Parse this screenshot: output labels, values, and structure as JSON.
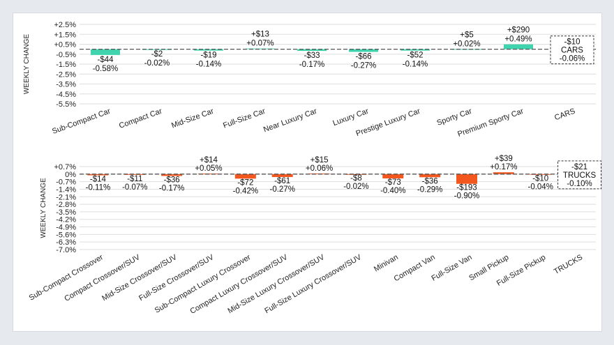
{
  "chart_data": [
    {
      "type": "bar",
      "title": "",
      "xlabel": "",
      "ylabel": "WEEKLY CHANGE",
      "ylim": [
        -5.5,
        2.5
      ],
      "yticks": [
        "+2.5%",
        "+1.5%",
        "+0.5%",
        "-0.5%",
        "-1.5%",
        "-2.5%",
        "-3.5%",
        "-4.5%",
        "-5.5%"
      ],
      "grid": true,
      "categories": [
        "Sub-Compact Car",
        "Compact Car",
        "Mid-Size Car",
        "Full-Size Car",
        "Near Luxury Car",
        "Luxury Car",
        "Prestige Luxury Car",
        "Sporty Car",
        "Premium Sporty Car",
        "CARS"
      ],
      "values": [
        -0.58,
        -0.02,
        -0.14,
        0.07,
        -0.17,
        -0.27,
        -0.14,
        0.02,
        0.49,
        -0.06
      ],
      "dollar_labels": [
        "-$44",
        "-$2",
        "-$19",
        "+$13",
        "-$33",
        "-$66",
        "-$52",
        "+$5",
        "+$290",
        "-$10"
      ],
      "pct_labels": [
        "-0.58%",
        "-0.02%",
        "-0.14%",
        "+0.07%",
        "-0.17%",
        "-0.27%",
        "-0.14%",
        "+0.02%",
        "+0.49%",
        "-0.06%"
      ],
      "total_label": "CARS",
      "bar_color": "#3fd4ae"
    },
    {
      "type": "bar",
      "title": "",
      "xlabel": "",
      "ylabel": "WEEKLY CHANGE",
      "ylim": [
        -7.0,
        0.7
      ],
      "yticks": [
        "+0.7%",
        "0%",
        "-0.7%",
        "-1.4%",
        "-2.1%",
        "-2.8%",
        "-3.5%",
        "-4.2%",
        "-4.9%",
        "-5.6%",
        "-6.3%",
        "-7.0%"
      ],
      "grid": true,
      "categories": [
        "Sub-Compact Crossover",
        "Compact Crossover/SUV",
        "Mid-Size Crossover/SUV",
        "Full-Size Crossover/SUV",
        "Sub-Compact Luxury Crossover",
        "Compact Luxury Crossover/SUV",
        "Mid-Size Luxury Crossover/SUV",
        "Full-Size Luxury Crossover/SUV",
        "Minivan",
        "Compact Van",
        "Full-Size Van",
        "Small Pickup",
        "Full-Size Pickup",
        "TRUCKS"
      ],
      "values": [
        -0.11,
        -0.07,
        -0.17,
        0.05,
        -0.42,
        -0.27,
        0.06,
        -0.02,
        -0.4,
        -0.29,
        -0.9,
        0.17,
        -0.04,
        -0.1
      ],
      "dollar_labels": [
        "-$14",
        "-$11",
        "-$36",
        "+$14",
        "-$72",
        "-$61",
        "+$15",
        "-$8",
        "-$73",
        "-$36",
        "-$193",
        "+$39",
        "-$10",
        "-$21"
      ],
      "pct_labels": [
        "-0.11%",
        "-0.07%",
        "-0.17%",
        "+0.05%",
        "-0.42%",
        "-0.27%",
        "+0.06%",
        "-0.02%",
        "-0.40%",
        "-0.29%",
        "-0.90%",
        "+0.17%",
        "-0.04%",
        "-0.10%"
      ],
      "total_label": "TRUCKS",
      "bar_color": "#f4571e"
    }
  ]
}
